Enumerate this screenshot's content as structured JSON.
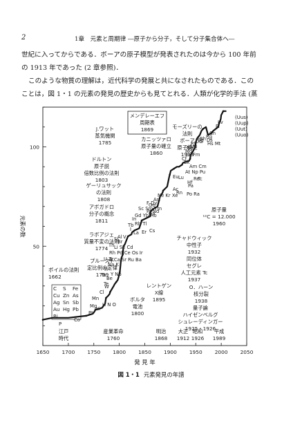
{
  "header": {
    "page_number": "2",
    "running_head": "1章　元素と周期律 ―原子から分子，そして分子集合体へ―"
  },
  "body_text": {
    "lines": [
      "世紀に入ってからである．ボーアの原子模型が発表されたのは今から 100 年前",
      "の 1913 年であった (2 章参照)．",
      "このような物質の理解は，近代科学の発展と共になされたものである．この",
      "ことは，図 1・1 の元素の発見の歴史からも見てとれる．人類が化学的手法 (蒸"
    ]
  },
  "figure": {
    "number": "図 1・1",
    "caption": "元素発見の年譜"
  },
  "chart_data": {
    "type": "line",
    "title": "",
    "xlabel": "発 見 年",
    "ylabel": "元素の数",
    "xlim": [
      1650,
      2050
    ],
    "ylim": [
      0,
      120
    ],
    "xticks": [
      1650,
      1700,
      1750,
      1800,
      1850,
      1900,
      1950,
      2000,
      2050
    ],
    "yticks": [
      50,
      100
    ],
    "grid": false,
    "series": [
      {
        "x": [
          1650,
          1669,
          1700,
          1735,
          1748,
          1751,
          1753,
          1766,
          1772,
          1774,
          1778,
          1781,
          1782,
          1789,
          1791,
          1794,
          1797,
          1798,
          1801,
          1803,
          1804,
          1807,
          1808,
          1811,
          1817,
          1824,
          1825,
          1830,
          1839,
          1843,
          1844,
          1860,
          1861,
          1863,
          1868,
          1875,
          1878,
          1880,
          1885,
          1886,
          1894,
          1898,
          1899,
          1900,
          1901,
          1907,
          1913,
          1917,
          1923,
          1925,
          1937,
          1939,
          1940,
          1945,
          1949,
          1950,
          1952,
          1955,
          1958,
          1961,
          1964,
          1970,
          1974,
          1981,
          1984,
          1994,
          1996,
          1999,
          2000,
          2004,
          2010
        ],
        "y": [
          13,
          14,
          14,
          15,
          16,
          17,
          18,
          19,
          21,
          24,
          25,
          26,
          27,
          30,
          31,
          32,
          33,
          34,
          37,
          42,
          44,
          46,
          50,
          51,
          55,
          56,
          57,
          58,
          59,
          62,
          63,
          65,
          67,
          68,
          69,
          70,
          73,
          75,
          77,
          78,
          80,
          85,
          86,
          87,
          88,
          89,
          90,
          90,
          91,
          92,
          93,
          94,
          96,
          98,
          100,
          102,
          104,
          105,
          106,
          108,
          109,
          110,
          106,
          107,
          108,
          110,
          112,
          114,
          116,
          118,
          118
        ]
      }
    ]
  },
  "annotations": {
    "ancient": [
      "C",
      "S",
      "Fe",
      "Cu",
      "Zn",
      "As",
      "Ag",
      "Sn",
      "Sb",
      "Au",
      "Hg",
      "Pb",
      "Bi"
    ],
    "boyle": [
      "ボイルの法則",
      "1662"
    ],
    "watt": [
      "J.ワット",
      "蒸気機関",
      "1785"
    ],
    "dalton": [
      "ドルトン",
      "原子説",
      "倍数比例の法則",
      "1803"
    ],
    "gay_lussac": [
      "ゲーリュサック",
      "の法則",
      "1808"
    ],
    "avogadro": [
      "アボガドロ",
      "分子の概念",
      "1811"
    ],
    "lavoisier": [
      "ラボアジェ",
      "質量不変の法則",
      "1774"
    ],
    "proust": [
      "プルースト",
      "定比例の定律",
      "1799"
    ],
    "mendeleev": [
      "メンデレーエフ",
      "周期表",
      "1869"
    ],
    "cannizzaro": [
      "カニッツァロ",
      "原子量の確立",
      "1860"
    ],
    "moseley": [
      "モーズリーの",
      "法則",
      "ボーア",
      "原子模型",
      "1913"
    ],
    "atomic_weight": [
      "原子量",
      "¹²C = 12.000",
      "1960"
    ],
    "chadwick": [
      "チャドウィック",
      "中性子",
      "1932",
      "同位体"
    ],
    "segre": [
      "セグレ",
      "人工元素 Tc",
      "1937"
    ],
    "roentgen": [
      "レントゲン",
      "X線",
      "1895"
    ],
    "hahn": [
      "O．ハーン",
      "核分裂",
      "1938"
    ],
    "quantum": [
      "量子論",
      "ハイゼンベルグ",
      "シュレーディンガー",
      "1925・1926"
    ],
    "volta": [
      "ボルタ",
      "電池",
      "1800"
    ],
    "industrial": [
      "産業革命",
      "1760"
    ],
    "edo": [
      "江戸",
      "時代"
    ],
    "meiji": [
      "明治",
      "1868"
    ],
    "taisho": [
      "大正",
      "1912"
    ],
    "showa": [
      "昭和",
      "1926"
    ],
    "heisei": [
      "平成",
      "1989"
    ],
    "uus_labels": [
      "(Uus)",
      "(Uup)",
      "(Uut)",
      "(Uuo)"
    ],
    "elements": [
      {
        "t": "P"
      },
      {
        "t": "Co"
      },
      {
        "t": "Pt"
      },
      {
        "t": "Ni"
      },
      {
        "t": "Mg"
      },
      {
        "t": "H N O"
      },
      {
        "t": "Mn"
      },
      {
        "t": "Cl"
      },
      {
        "t": "W"
      },
      {
        "t": "Te"
      },
      {
        "t": "Be"
      },
      {
        "t": "Ta"
      },
      {
        "t": "Y Nb"
      },
      {
        "t": "Ti"
      },
      {
        "t": "U Zr"
      },
      {
        "t": "Na K"
      },
      {
        "t": "Rh Pd Ce Os Ir"
      },
      {
        "t": "B Ca Sr Ru Ba"
      },
      {
        "t": "Th"
      },
      {
        "t": "Li Se Cd"
      },
      {
        "t": "Si"
      },
      {
        "t": "Al"
      },
      {
        "t": "Br"
      },
      {
        "t": "V"
      },
      {
        "t": "I"
      },
      {
        "t": "La"
      },
      {
        "t": "Er"
      },
      {
        "t": "Cs"
      },
      {
        "t": "Tb"
      },
      {
        "t": "Rb Tl"
      },
      {
        "t": "In"
      },
      {
        "t": "Gd Yb Ho"
      },
      {
        "t": "Ga"
      },
      {
        "t": "Pr Nd"
      },
      {
        "t": "Sc Sm Tm"
      },
      {
        "t": "F Dy"
      },
      {
        "t": "Ge"
      },
      {
        "t": "Ar"
      },
      {
        "t": "Ne Kr Xe"
      },
      {
        "t": "Po Ra"
      },
      {
        "t": "Rn"
      },
      {
        "t": "Ac"
      },
      {
        "t": "Lu"
      },
      {
        "t": "Eu"
      },
      {
        "t": "Pa"
      },
      {
        "t": "Hf"
      },
      {
        "t": "Re"
      },
      {
        "t": "Tc"
      },
      {
        "t": "At Np Pu"
      },
      {
        "t": "Am Cm"
      },
      {
        "t": "Bk"
      },
      {
        "t": "Cf"
      },
      {
        "t": "Es Fm"
      },
      {
        "t": "Md"
      },
      {
        "t": "No"
      },
      {
        "t": "Lr"
      },
      {
        "t": "Rf"
      },
      {
        "t": "Db"
      },
      {
        "t": "Sg"
      },
      {
        "t": "Bh"
      },
      {
        "t": "Hs Mt"
      },
      {
        "t": "Ds"
      },
      {
        "t": "Rg"
      },
      {
        "t": "Cn"
      },
      {
        "t": "Fl"
      },
      {
        "t": "Lv"
      }
    ]
  }
}
